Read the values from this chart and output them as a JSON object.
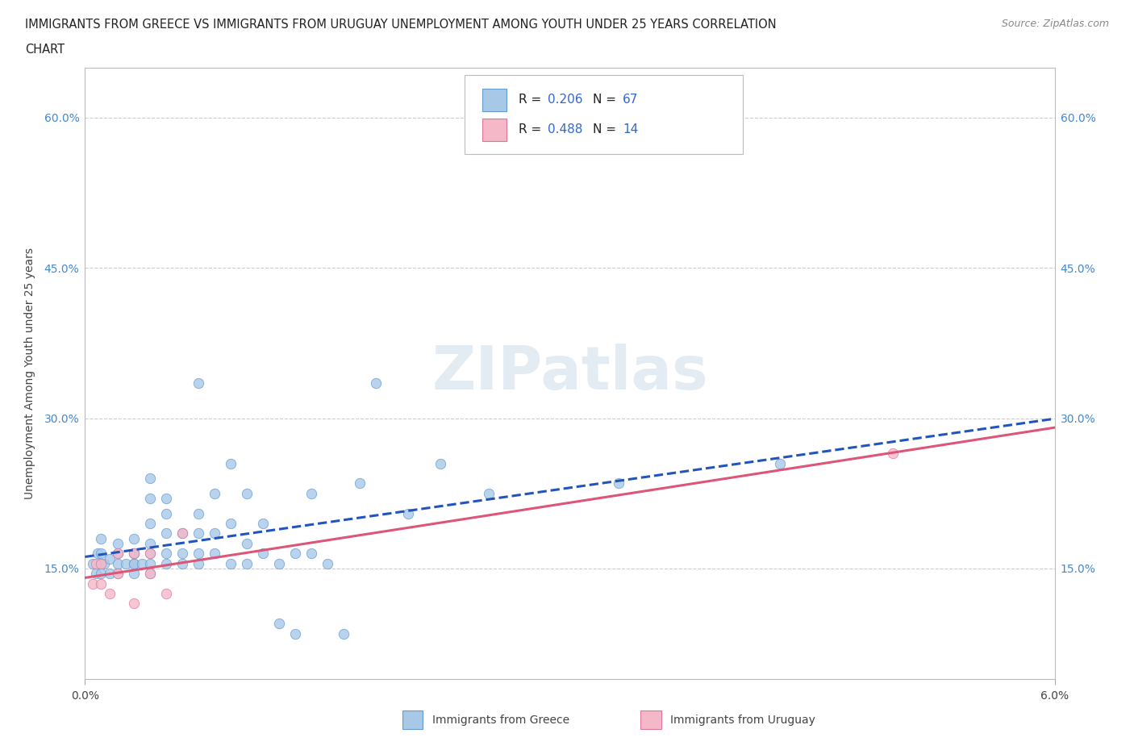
{
  "title_line1": "IMMIGRANTS FROM GREECE VS IMMIGRANTS FROM URUGUAY UNEMPLOYMENT AMONG YOUTH UNDER 25 YEARS CORRELATION",
  "title_line2": "CHART",
  "source_text": "Source: ZipAtlas.com",
  "ylabel": "Unemployment Among Youth under 25 years",
  "xlim": [
    0.0,
    0.06
  ],
  "ylim": [
    0.04,
    0.65
  ],
  "xtick_positions": [
    0.0,
    0.06
  ],
  "xtick_labels": [
    "0.0%",
    "6.0%"
  ],
  "ytick_values": [
    0.15,
    0.3,
    0.45,
    0.6
  ],
  "ytick_labels": [
    "15.0%",
    "30.0%",
    "45.0%",
    "60.0%"
  ],
  "greece_color": "#a8c8e8",
  "greece_edge": "#6699cc",
  "uruguay_color": "#f4b8c8",
  "uruguay_edge": "#dd7799",
  "trend_greece_color": "#2255bb",
  "trend_uruguay_color": "#dd5577",
  "watermark": "ZIPatlas",
  "greece_scatter": [
    [
      0.0005,
      0.155
    ],
    [
      0.0007,
      0.145
    ],
    [
      0.0008,
      0.165
    ],
    [
      0.001,
      0.165
    ],
    [
      0.001,
      0.18
    ],
    [
      0.001,
      0.155
    ],
    [
      0.001,
      0.145
    ],
    [
      0.0012,
      0.155
    ],
    [
      0.0015,
      0.16
    ],
    [
      0.0015,
      0.145
    ],
    [
      0.002,
      0.155
    ],
    [
      0.002,
      0.165
    ],
    [
      0.002,
      0.175
    ],
    [
      0.002,
      0.145
    ],
    [
      0.0025,
      0.155
    ],
    [
      0.003,
      0.155
    ],
    [
      0.003,
      0.165
    ],
    [
      0.003,
      0.155
    ],
    [
      0.003,
      0.145
    ],
    [
      0.003,
      0.18
    ],
    [
      0.003,
      0.165
    ],
    [
      0.0035,
      0.155
    ],
    [
      0.004,
      0.145
    ],
    [
      0.004,
      0.155
    ],
    [
      0.004,
      0.165
    ],
    [
      0.004,
      0.175
    ],
    [
      0.004,
      0.195
    ],
    [
      0.004,
      0.22
    ],
    [
      0.004,
      0.24
    ],
    [
      0.005,
      0.155
    ],
    [
      0.005,
      0.165
    ],
    [
      0.005,
      0.185
    ],
    [
      0.005,
      0.205
    ],
    [
      0.005,
      0.22
    ],
    [
      0.006,
      0.155
    ],
    [
      0.006,
      0.165
    ],
    [
      0.006,
      0.185
    ],
    [
      0.007,
      0.155
    ],
    [
      0.007,
      0.165
    ],
    [
      0.007,
      0.185
    ],
    [
      0.007,
      0.205
    ],
    [
      0.007,
      0.335
    ],
    [
      0.008,
      0.165
    ],
    [
      0.008,
      0.185
    ],
    [
      0.008,
      0.225
    ],
    [
      0.009,
      0.155
    ],
    [
      0.009,
      0.195
    ],
    [
      0.009,
      0.255
    ],
    [
      0.01,
      0.155
    ],
    [
      0.01,
      0.175
    ],
    [
      0.01,
      0.225
    ],
    [
      0.011,
      0.165
    ],
    [
      0.011,
      0.195
    ],
    [
      0.012,
      0.095
    ],
    [
      0.012,
      0.155
    ],
    [
      0.013,
      0.085
    ],
    [
      0.013,
      0.165
    ],
    [
      0.014,
      0.165
    ],
    [
      0.014,
      0.225
    ],
    [
      0.015,
      0.155
    ],
    [
      0.016,
      0.085
    ],
    [
      0.017,
      0.235
    ],
    [
      0.018,
      0.335
    ],
    [
      0.02,
      0.205
    ],
    [
      0.022,
      0.255
    ],
    [
      0.025,
      0.225
    ],
    [
      0.033,
      0.235
    ],
    [
      0.043,
      0.255
    ]
  ],
  "uruguay_scatter": [
    [
      0.0005,
      0.135
    ],
    [
      0.0007,
      0.155
    ],
    [
      0.001,
      0.135
    ],
    [
      0.001,
      0.155
    ],
    [
      0.0015,
      0.125
    ],
    [
      0.002,
      0.165
    ],
    [
      0.002,
      0.145
    ],
    [
      0.003,
      0.115
    ],
    [
      0.003,
      0.165
    ],
    [
      0.004,
      0.145
    ],
    [
      0.004,
      0.165
    ],
    [
      0.005,
      0.125
    ],
    [
      0.006,
      0.185
    ],
    [
      0.05,
      0.265
    ]
  ]
}
